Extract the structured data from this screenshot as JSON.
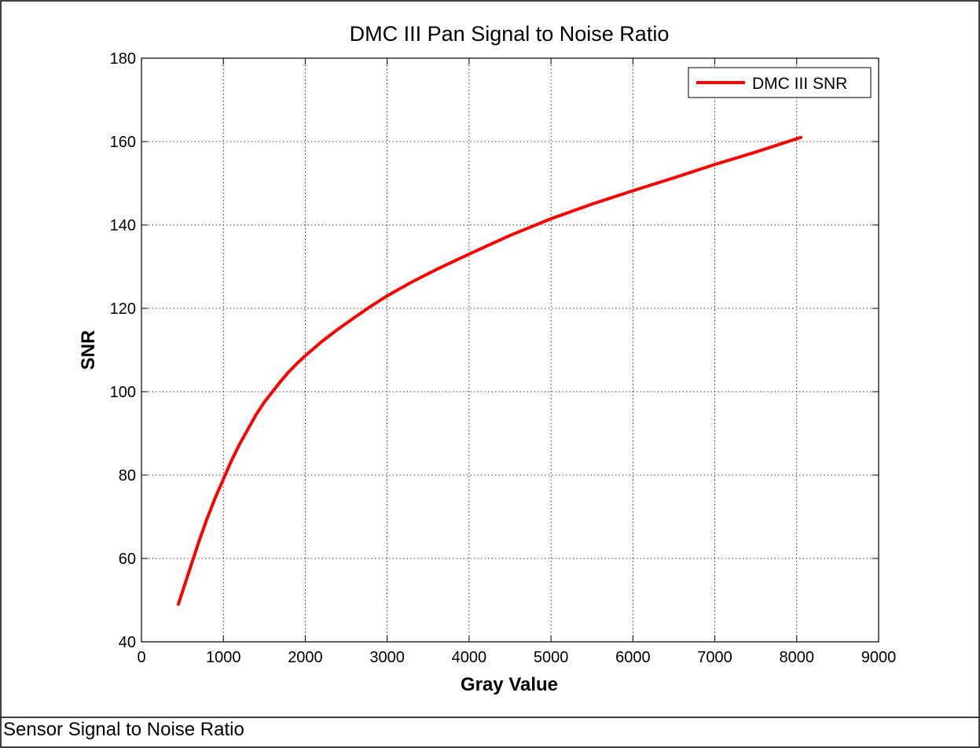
{
  "caption": "Sensor Signal to Noise Ratio",
  "chart_data": {
    "type": "line",
    "title": "DMC III Pan Signal to Noise Ratio",
    "xlabel": "Gray Value",
    "ylabel": "SNR",
    "xlim": [
      0,
      9000
    ],
    "ylim": [
      40,
      180
    ],
    "xticks": [
      0,
      1000,
      2000,
      3000,
      4000,
      5000,
      6000,
      7000,
      8000,
      9000
    ],
    "yticks": [
      40,
      60,
      80,
      100,
      120,
      140,
      160,
      180
    ],
    "grid": true,
    "legend_position": "top-right",
    "series": [
      {
        "name": "DMC III SNR",
        "color": "#ff0000",
        "x": [
          450,
          500,
          600,
          700,
          800,
          900,
          1000,
          1100,
          1200,
          1300,
          1400,
          1500,
          1600,
          1700,
          1800,
          1900,
          2000,
          2200,
          2400,
          2600,
          2800,
          3000,
          3300,
          3600,
          4000,
          4500,
          5000,
          5500,
          6000,
          6500,
          7000,
          7500,
          8050
        ],
        "y": [
          49,
          52,
          58,
          64,
          69.5,
          74.5,
          79,
          83.5,
          87.5,
          91,
          94.5,
          97.5,
          100,
          102.5,
          104.8,
          106.8,
          108.6,
          112,
          115,
          117.8,
          120.5,
          123,
          126.3,
          129.3,
          133,
          137.5,
          141.5,
          145,
          148.2,
          151.3,
          154.5,
          157.5,
          161
        ]
      }
    ]
  }
}
